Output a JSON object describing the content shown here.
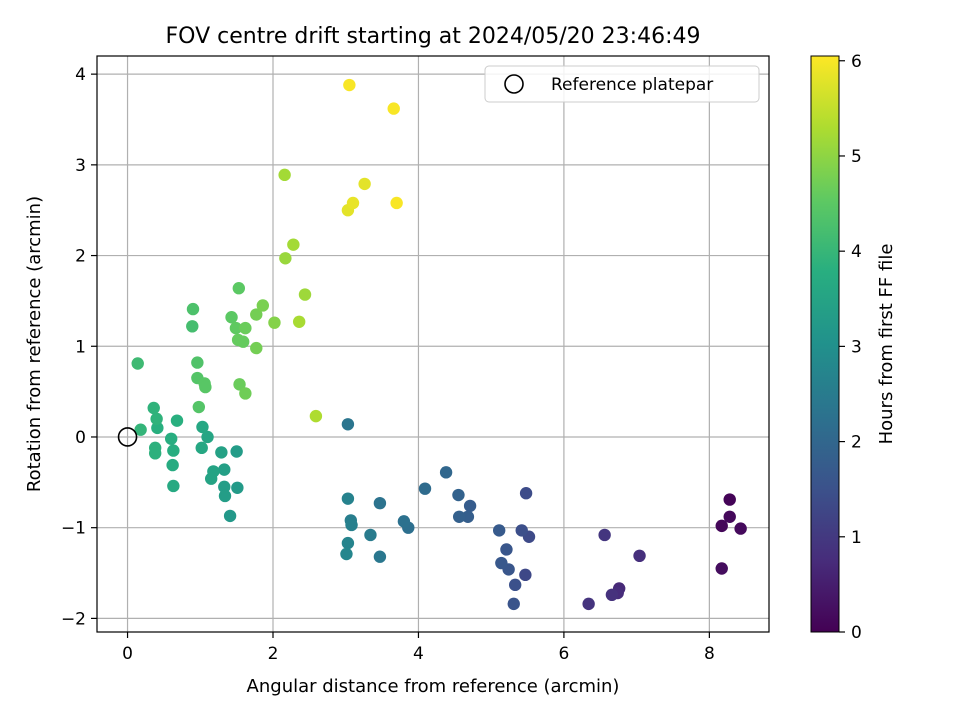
{
  "chart_data": {
    "type": "scatter",
    "title": "FOV centre drift starting at 2024/05/20 23:46:49",
    "xlabel": "Angular distance from reference (arcmin)",
    "ylabel": "Rotation from reference (arcmin)",
    "xlim": [
      -0.42,
      8.82
    ],
    "ylim": [
      -2.15,
      4.2
    ],
    "xticks": [
      0,
      2,
      4,
      6,
      8
    ],
    "yticks": [
      -2,
      -1,
      0,
      1,
      2,
      3,
      4
    ],
    "xtick_labels": [
      "0",
      "2",
      "4",
      "6",
      "8"
    ],
    "ytick_labels": [
      "−2",
      "−1",
      "0",
      "1",
      "2",
      "3",
      "4"
    ],
    "grid": true,
    "legend_position": "top-right",
    "reference_point": {
      "label": "Reference platepar",
      "x": 0.0,
      "y": 0.0
    },
    "colorbar": {
      "label": "Hours from first FF file",
      "colormap": "viridis",
      "range": [
        0,
        6.05
      ],
      "ticks": [
        0,
        1,
        2,
        3,
        4,
        5,
        6
      ],
      "tick_labels": [
        "0",
        "1",
        "2",
        "3",
        "4",
        "5",
        "6"
      ]
    },
    "points": [
      {
        "x": 8.28,
        "y": -0.69,
        "c": 0.05
      },
      {
        "x": 8.17,
        "y": -0.98,
        "c": 0.1
      },
      {
        "x": 8.28,
        "y": -0.88,
        "c": 0.12
      },
      {
        "x": 8.43,
        "y": -1.01,
        "c": 0.15
      },
      {
        "x": 8.17,
        "y": -1.45,
        "c": 0.2
      },
      {
        "x": 7.04,
        "y": -1.31,
        "c": 0.8
      },
      {
        "x": 6.56,
        "y": -1.08,
        "c": 0.95
      },
      {
        "x": 6.76,
        "y": -1.67,
        "c": 0.7
      },
      {
        "x": 6.74,
        "y": -1.72,
        "c": 0.75
      },
      {
        "x": 6.66,
        "y": -1.74,
        "c": 0.85
      },
      {
        "x": 6.34,
        "y": -1.84,
        "c": 0.9
      },
      {
        "x": 5.48,
        "y": -0.62,
        "c": 1.4
      },
      {
        "x": 5.52,
        "y": -1.1,
        "c": 1.35
      },
      {
        "x": 5.42,
        "y": -1.03,
        "c": 1.45
      },
      {
        "x": 5.47,
        "y": -1.52,
        "c": 1.3
      },
      {
        "x": 5.33,
        "y": -1.63,
        "c": 1.5
      },
      {
        "x": 5.31,
        "y": -1.84,
        "c": 1.55
      },
      {
        "x": 5.24,
        "y": -1.46,
        "c": 1.6
      },
      {
        "x": 5.14,
        "y": -1.39,
        "c": 1.65
      },
      {
        "x": 5.21,
        "y": -1.24,
        "c": 1.6
      },
      {
        "x": 5.11,
        "y": -1.03,
        "c": 1.7
      },
      {
        "x": 4.71,
        "y": -0.76,
        "c": 1.75
      },
      {
        "x": 4.68,
        "y": -0.88,
        "c": 1.8
      },
      {
        "x": 4.56,
        "y": -0.88,
        "c": 1.85
      },
      {
        "x": 4.55,
        "y": -0.64,
        "c": 1.9
      },
      {
        "x": 4.38,
        "y": -0.39,
        "c": 2.0
      },
      {
        "x": 4.09,
        "y": -0.57,
        "c": 2.1
      },
      {
        "x": 3.86,
        "y": -1.0,
        "c": 2.2
      },
      {
        "x": 3.8,
        "y": -0.93,
        "c": 2.25
      },
      {
        "x": 3.47,
        "y": -0.73,
        "c": 2.3
      },
      {
        "x": 3.47,
        "y": -1.32,
        "c": 2.4
      },
      {
        "x": 3.34,
        "y": -1.08,
        "c": 2.5
      },
      {
        "x": 3.07,
        "y": -0.92,
        "c": 2.55
      },
      {
        "x": 3.08,
        "y": -0.97,
        "c": 2.6
      },
      {
        "x": 3.03,
        "y": -0.68,
        "c": 2.65
      },
      {
        "x": 3.03,
        "y": -1.17,
        "c": 2.7
      },
      {
        "x": 3.01,
        "y": -1.29,
        "c": 2.75
      },
      {
        "x": 3.03,
        "y": 0.14,
        "c": 2.35
      },
      {
        "x": 1.41,
        "y": -0.87,
        "c": 3.2
      },
      {
        "x": 1.51,
        "y": -0.56,
        "c": 3.25
      },
      {
        "x": 1.5,
        "y": -0.16,
        "c": 3.3
      },
      {
        "x": 1.33,
        "y": -0.55,
        "c": 3.35
      },
      {
        "x": 1.34,
        "y": -0.65,
        "c": 3.35
      },
      {
        "x": 1.33,
        "y": -0.36,
        "c": 3.4
      },
      {
        "x": 1.29,
        "y": -0.17,
        "c": 3.45
      },
      {
        "x": 1.18,
        "y": -0.38,
        "c": 3.5
      },
      {
        "x": 1.15,
        "y": -0.46,
        "c": 3.5
      },
      {
        "x": 1.1,
        "y": 0.0,
        "c": 3.55
      },
      {
        "x": 1.03,
        "y": 0.11,
        "c": 3.6
      },
      {
        "x": 1.02,
        "y": -0.12,
        "c": 3.6
      },
      {
        "x": 0.63,
        "y": -0.54,
        "c": 3.65
      },
      {
        "x": 0.62,
        "y": -0.31,
        "c": 3.7
      },
      {
        "x": 0.63,
        "y": -0.15,
        "c": 3.75
      },
      {
        "x": 0.6,
        "y": -0.02,
        "c": 3.75
      },
      {
        "x": 0.68,
        "y": 0.18,
        "c": 3.8
      },
      {
        "x": 0.41,
        "y": 0.1,
        "c": 3.8
      },
      {
        "x": 0.38,
        "y": -0.12,
        "c": 3.85
      },
      {
        "x": 0.38,
        "y": -0.18,
        "c": 3.85
      },
      {
        "x": 0.4,
        "y": 0.2,
        "c": 3.9
      },
      {
        "x": 0.36,
        "y": 0.32,
        "c": 3.9
      },
      {
        "x": 0.18,
        "y": 0.08,
        "c": 3.95
      },
      {
        "x": 0.14,
        "y": 0.81,
        "c": 4.1
      },
      {
        "x": 0.89,
        "y": 1.22,
        "c": 4.2
      },
      {
        "x": 0.9,
        "y": 1.41,
        "c": 4.3
      },
      {
        "x": 0.96,
        "y": 0.82,
        "c": 4.35
      },
      {
        "x": 0.96,
        "y": 0.65,
        "c": 4.4
      },
      {
        "x": 0.98,
        "y": 0.33,
        "c": 4.4
      },
      {
        "x": 1.06,
        "y": 0.59,
        "c": 4.45
      },
      {
        "x": 1.07,
        "y": 0.55,
        "c": 4.45
      },
      {
        "x": 1.53,
        "y": 1.64,
        "c": 4.5
      },
      {
        "x": 1.43,
        "y": 1.32,
        "c": 4.5
      },
      {
        "x": 1.49,
        "y": 1.2,
        "c": 4.55
      },
      {
        "x": 1.52,
        "y": 1.07,
        "c": 4.6
      },
      {
        "x": 1.59,
        "y": 1.05,
        "c": 4.6
      },
      {
        "x": 1.62,
        "y": 1.2,
        "c": 4.65
      },
      {
        "x": 1.54,
        "y": 0.58,
        "c": 4.65
      },
      {
        "x": 1.62,
        "y": 0.48,
        "c": 4.7
      },
      {
        "x": 1.77,
        "y": 0.98,
        "c": 4.75
      },
      {
        "x": 1.77,
        "y": 1.35,
        "c": 4.75
      },
      {
        "x": 1.86,
        "y": 1.45,
        "c": 4.8
      },
      {
        "x": 2.02,
        "y": 1.26,
        "c": 4.9
      },
      {
        "x": 2.17,
        "y": 1.97,
        "c": 5.1
      },
      {
        "x": 2.16,
        "y": 2.89,
        "c": 5.2
      },
      {
        "x": 2.28,
        "y": 2.12,
        "c": 5.2
      },
      {
        "x": 2.36,
        "y": 1.27,
        "c": 5.25
      },
      {
        "x": 2.44,
        "y": 1.57,
        "c": 5.15
      },
      {
        "x": 2.59,
        "y": 0.23,
        "c": 5.3
      },
      {
        "x": 3.03,
        "y": 2.5,
        "c": 5.8
      },
      {
        "x": 3.1,
        "y": 2.58,
        "c": 5.85
      },
      {
        "x": 3.26,
        "y": 2.79,
        "c": 5.8
      },
      {
        "x": 3.7,
        "y": 2.58,
        "c": 6.0
      },
      {
        "x": 3.05,
        "y": 3.88,
        "c": 6.0
      },
      {
        "x": 3.66,
        "y": 3.62,
        "c": 6.0
      }
    ]
  }
}
